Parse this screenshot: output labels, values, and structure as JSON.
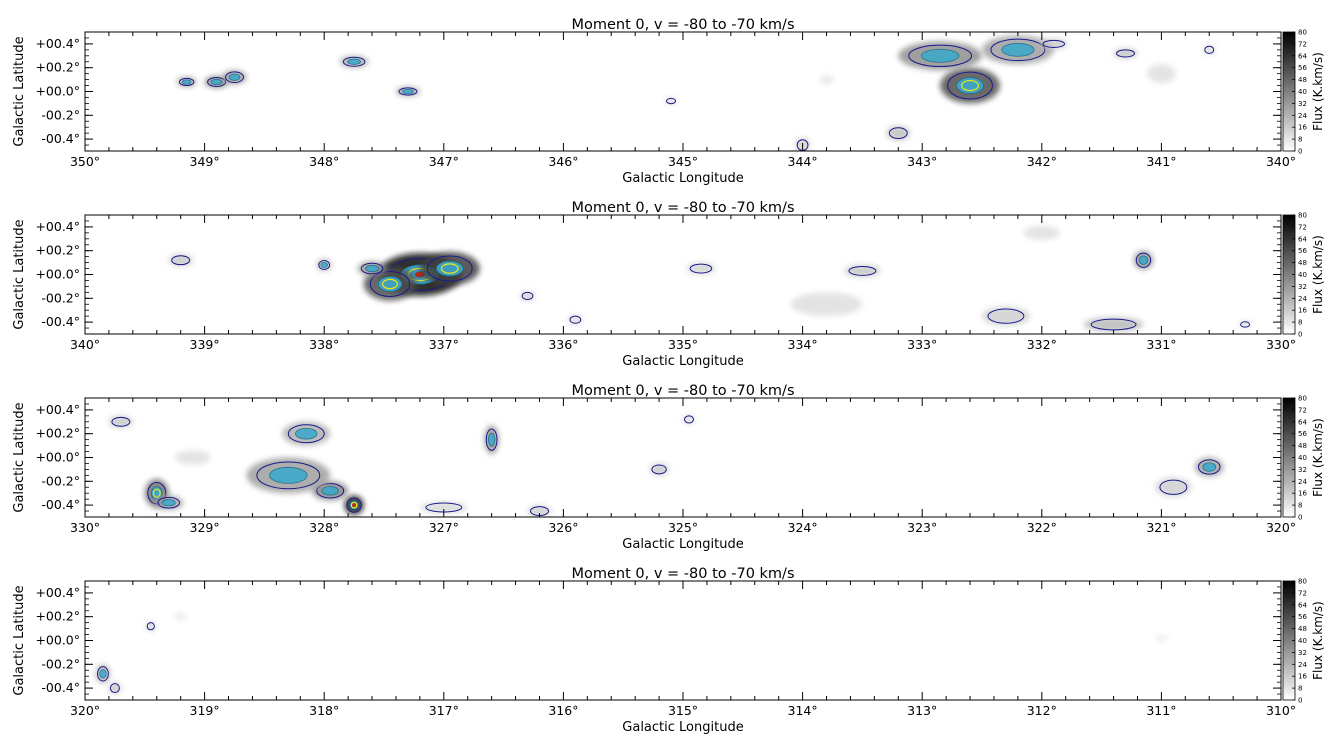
{
  "chart_data": [
    {
      "type": "heatmap",
      "title": "Moment 0, v = -80 to -70 km/s",
      "xlabel": "Galactic Longitude",
      "ylabel": "Galactic Latitude",
      "xlim": [
        350,
        340
      ],
      "ylim": [
        -0.5,
        0.5
      ],
      "xticks": [
        350,
        349,
        348,
        347,
        346,
        345,
        344,
        343,
        342,
        341,
        340
      ],
      "xtick_labels": [
        "350°",
        "349°",
        "348°",
        "347°",
        "346°",
        "345°",
        "344°",
        "343°",
        "342°",
        "341°",
        "340°"
      ],
      "yticks": [
        0.4,
        0.2,
        0.0,
        -0.2,
        -0.4
      ],
      "ytick_labels": [
        "+00.4°",
        "+00.2°",
        "+00.0°",
        "-00.2°",
        "-00.4°"
      ],
      "colorbar": {
        "label": "Flux (K.km/s)",
        "min": 0,
        "max": 80,
        "ticks": [
          0,
          8,
          16,
          24,
          32,
          40,
          48,
          56,
          64,
          72,
          80
        ]
      },
      "features": [
        {
          "l": 348.9,
          "b": 0.08,
          "intensity": 40,
          "rx": 0.1,
          "ry": 0.05
        },
        {
          "l": 349.15,
          "b": 0.08,
          "intensity": 35,
          "rx": 0.08,
          "ry": 0.04
        },
        {
          "l": 348.75,
          "b": 0.12,
          "intensity": 32,
          "rx": 0.1,
          "ry": 0.06
        },
        {
          "l": 347.75,
          "b": 0.25,
          "intensity": 28,
          "rx": 0.12,
          "ry": 0.05
        },
        {
          "l": 347.3,
          "b": 0.0,
          "intensity": 30,
          "rx": 0.1,
          "ry": 0.04
        },
        {
          "l": 342.6,
          "b": 0.05,
          "intensity": 55,
          "rx": 0.25,
          "ry": 0.15
        },
        {
          "l": 342.85,
          "b": 0.3,
          "intensity": 35,
          "rx": 0.35,
          "ry": 0.12
        },
        {
          "l": 342.2,
          "b": 0.35,
          "intensity": 30,
          "rx": 0.3,
          "ry": 0.12
        },
        {
          "l": 341.3,
          "b": 0.32,
          "intensity": 20,
          "rx": 0.1,
          "ry": 0.04
        },
        {
          "l": 341.9,
          "b": 0.4,
          "intensity": 18,
          "rx": 0.12,
          "ry": 0.04
        },
        {
          "l": 343.2,
          "b": -0.35,
          "intensity": 20,
          "rx": 0.1,
          "ry": 0.06
        },
        {
          "l": 344.0,
          "b": -0.45,
          "intensity": 15,
          "rx": 0.06,
          "ry": 0.06
        },
        {
          "l": 345.1,
          "b": -0.08,
          "intensity": 12,
          "rx": 0.05,
          "ry": 0.03
        },
        {
          "l": 340.6,
          "b": 0.35,
          "intensity": 12,
          "rx": 0.05,
          "ry": 0.04
        },
        {
          "l": 343.8,
          "b": 0.1,
          "intensity": 8,
          "rx": 0.06,
          "ry": 0.04
        },
        {
          "l": 341.0,
          "b": 0.15,
          "intensity": 10,
          "rx": 0.12,
          "ry": 0.08
        }
      ]
    },
    {
      "type": "heatmap",
      "title": "Moment 0, v = -80 to -70 km/s",
      "xlabel": "Galactic Longitude",
      "ylabel": "Galactic Latitude",
      "xlim": [
        340,
        330
      ],
      "ylim": [
        -0.5,
        0.5
      ],
      "xticks": [
        340,
        339,
        338,
        337,
        336,
        335,
        334,
        333,
        332,
        331,
        330
      ],
      "xtick_labels": [
        "340°",
        "339°",
        "338°",
        "337°",
        "336°",
        "335°",
        "334°",
        "333°",
        "332°",
        "331°",
        "330°"
      ],
      "yticks": [
        0.4,
        0.2,
        0.0,
        -0.2,
        -0.4
      ],
      "ytick_labels": [
        "+00.4°",
        "+00.2°",
        "+00.0°",
        "-00.2°",
        "-00.4°"
      ],
      "colorbar": {
        "label": "Flux (K.km/s)",
        "min": 0,
        "max": 80,
        "ticks": [
          0,
          8,
          16,
          24,
          32,
          40,
          48,
          56,
          64,
          72,
          80
        ]
      },
      "features": [
        {
          "l": 337.2,
          "b": 0.0,
          "intensity": 75,
          "rx": 0.35,
          "ry": 0.18
        },
        {
          "l": 336.95,
          "b": 0.05,
          "intensity": 60,
          "rx": 0.25,
          "ry": 0.14
        },
        {
          "l": 337.45,
          "b": -0.08,
          "intensity": 55,
          "rx": 0.22,
          "ry": 0.14
        },
        {
          "l": 337.6,
          "b": 0.05,
          "intensity": 35,
          "rx": 0.12,
          "ry": 0.06
        },
        {
          "l": 338.0,
          "b": 0.08,
          "intensity": 25,
          "rx": 0.06,
          "ry": 0.05
        },
        {
          "l": 339.2,
          "b": 0.12,
          "intensity": 18,
          "rx": 0.1,
          "ry": 0.05
        },
        {
          "l": 336.3,
          "b": -0.18,
          "intensity": 15,
          "rx": 0.06,
          "ry": 0.04
        },
        {
          "l": 334.85,
          "b": 0.05,
          "intensity": 14,
          "rx": 0.12,
          "ry": 0.05
        },
        {
          "l": 333.5,
          "b": 0.03,
          "intensity": 18,
          "rx": 0.15,
          "ry": 0.05
        },
        {
          "l": 331.15,
          "b": 0.12,
          "intensity": 35,
          "rx": 0.08,
          "ry": 0.08
        },
        {
          "l": 331.4,
          "b": -0.42,
          "intensity": 22,
          "rx": 0.25,
          "ry": 0.06
        },
        {
          "l": 332.3,
          "b": -0.35,
          "intensity": 15,
          "rx": 0.2,
          "ry": 0.08
        },
        {
          "l": 333.8,
          "b": -0.25,
          "intensity": 10,
          "rx": 0.3,
          "ry": 0.1
        },
        {
          "l": 335.9,
          "b": -0.38,
          "intensity": 12,
          "rx": 0.06,
          "ry": 0.04
        },
        {
          "l": 330.3,
          "b": -0.42,
          "intensity": 12,
          "rx": 0.05,
          "ry": 0.03
        },
        {
          "l": 332.0,
          "b": 0.35,
          "intensity": 10,
          "rx": 0.15,
          "ry": 0.06
        }
      ]
    },
    {
      "type": "heatmap",
      "title": "Moment 0, v = -80 to -70 km/s",
      "xlabel": "Galactic Longitude",
      "ylabel": "Galactic Latitude",
      "xlim": [
        330,
        320
      ],
      "ylim": [
        -0.5,
        0.5
      ],
      "xticks": [
        330,
        329,
        328,
        327,
        326,
        325,
        324,
        323,
        322,
        321,
        320
      ],
      "xtick_labels": [
        "330°",
        "329°",
        "328°",
        "327°",
        "326°",
        "325°",
        "324°",
        "323°",
        "322°",
        "321°",
        "320°"
      ],
      "yticks": [
        0.4,
        0.2,
        0.0,
        -0.2,
        -0.4
      ],
      "ytick_labels": [
        "+00.4°",
        "+00.2°",
        "+00.0°",
        "-00.2°",
        "-00.4°"
      ],
      "colorbar": {
        "label": "Flux (K.km/s)",
        "min": 0,
        "max": 80,
        "ticks": [
          0,
          8,
          16,
          24,
          32,
          40,
          48,
          56,
          64,
          72,
          80
        ]
      },
      "features": [
        {
          "l": 327.75,
          "b": -0.4,
          "intensity": 75,
          "rx": 0.08,
          "ry": 0.08
        },
        {
          "l": 327.95,
          "b": -0.28,
          "intensity": 40,
          "rx": 0.15,
          "ry": 0.08
        },
        {
          "l": 328.3,
          "b": -0.15,
          "intensity": 30,
          "rx": 0.35,
          "ry": 0.15
        },
        {
          "l": 329.4,
          "b": -0.3,
          "intensity": 45,
          "rx": 0.1,
          "ry": 0.12
        },
        {
          "l": 329.3,
          "b": -0.38,
          "intensity": 30,
          "rx": 0.12,
          "ry": 0.06
        },
        {
          "l": 326.6,
          "b": 0.15,
          "intensity": 35,
          "rx": 0.06,
          "ry": 0.12
        },
        {
          "l": 328.15,
          "b": 0.2,
          "intensity": 25,
          "rx": 0.2,
          "ry": 0.1
        },
        {
          "l": 329.7,
          "b": 0.3,
          "intensity": 18,
          "rx": 0.1,
          "ry": 0.05
        },
        {
          "l": 325.2,
          "b": -0.1,
          "intensity": 18,
          "rx": 0.08,
          "ry": 0.05
        },
        {
          "l": 320.6,
          "b": -0.08,
          "intensity": 30,
          "rx": 0.12,
          "ry": 0.08
        },
        {
          "l": 320.9,
          "b": -0.25,
          "intensity": 15,
          "rx": 0.15,
          "ry": 0.08
        },
        {
          "l": 324.95,
          "b": 0.32,
          "intensity": 12,
          "rx": 0.05,
          "ry": 0.04
        },
        {
          "l": 326.2,
          "b": -0.45,
          "intensity": 15,
          "rx": 0.1,
          "ry": 0.05
        },
        {
          "l": 327.0,
          "b": -0.42,
          "intensity": 12,
          "rx": 0.2,
          "ry": 0.05
        },
        {
          "l": 329.1,
          "b": 0.0,
          "intensity": 10,
          "rx": 0.15,
          "ry": 0.06
        }
      ]
    },
    {
      "type": "heatmap",
      "title": "Moment 0, v = -80 to -70 km/s",
      "xlabel": "Galactic Longitude",
      "ylabel": "Galactic Latitude",
      "xlim": [
        320,
        310
      ],
      "ylim": [
        -0.5,
        0.5
      ],
      "xticks": [
        320,
        319,
        318,
        317,
        316,
        315,
        314,
        313,
        312,
        311,
        310
      ],
      "xtick_labels": [
        "320°",
        "319°",
        "318°",
        "317°",
        "316°",
        "315°",
        "314°",
        "313°",
        "312°",
        "311°",
        "310°"
      ],
      "yticks": [
        0.4,
        0.2,
        0.0,
        -0.2,
        -0.4
      ],
      "ytick_labels": [
        "+00.4°",
        "+00.2°",
        "+00.0°",
        "-00.2°",
        "-00.4°"
      ],
      "colorbar": {
        "label": "Flux (K.km/s)",
        "min": 0,
        "max": 80,
        "ticks": [
          0,
          8,
          16,
          24,
          32,
          40,
          48,
          56,
          64,
          72,
          80
        ]
      },
      "features": [
        {
          "l": 319.85,
          "b": -0.28,
          "intensity": 25,
          "rx": 0.06,
          "ry": 0.08
        },
        {
          "l": 319.75,
          "b": -0.4,
          "intensity": 18,
          "rx": 0.05,
          "ry": 0.05
        },
        {
          "l": 319.45,
          "b": 0.12,
          "intensity": 15,
          "rx": 0.04,
          "ry": 0.04
        },
        {
          "l": 319.2,
          "b": 0.2,
          "intensity": 8,
          "rx": 0.05,
          "ry": 0.03
        },
        {
          "l": 311.0,
          "b": 0.02,
          "intensity": 6,
          "rx": 0.05,
          "ry": 0.03
        }
      ]
    }
  ]
}
